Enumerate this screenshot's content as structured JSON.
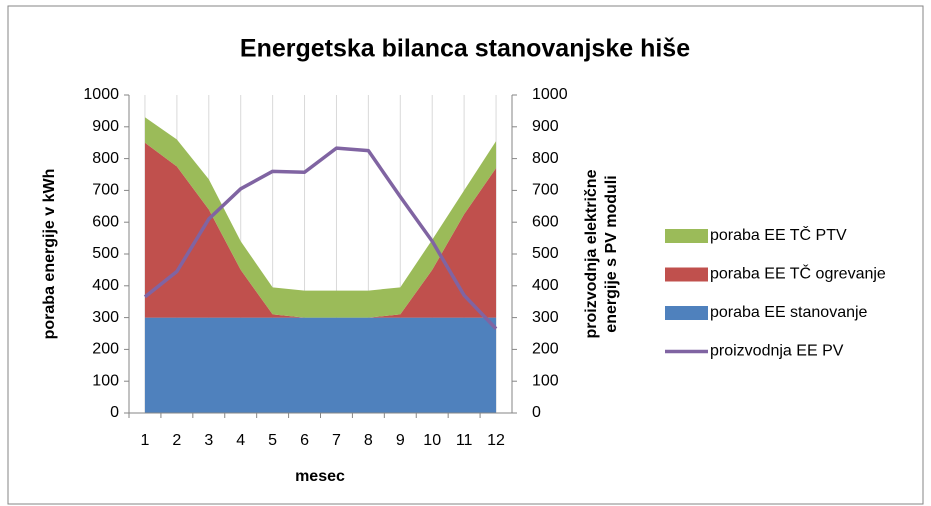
{
  "chart_data": {
    "type": "area",
    "title": "Energetska bilanca stanovanjske hiše",
    "xlabel": "mesec",
    "ylabel": "poraba energije v kWh",
    "y2label": [
      "proizvodnja električne",
      "energije s PV moduli"
    ],
    "categories": [
      "1",
      "2",
      "3",
      "4",
      "5",
      "6",
      "7",
      "8",
      "9",
      "10",
      "11",
      "12"
    ],
    "series": [
      {
        "name": "poraba EE stanovanje",
        "type": "area",
        "color": "#4f81bd",
        "values": [
          300,
          300,
          300,
          300,
          300,
          300,
          300,
          300,
          300,
          300,
          300,
          300
        ]
      },
      {
        "name": "poraba EE TČ ogrevanje",
        "type": "area",
        "color": "#c0504d",
        "values": [
          550,
          475,
          340,
          150,
          10,
          0,
          0,
          0,
          10,
          150,
          325,
          470
        ]
      },
      {
        "name": "poraba EE TČ PTV",
        "type": "area",
        "color": "#9bbb59",
        "values": [
          80,
          85,
          95,
          90,
          85,
          85,
          85,
          85,
          85,
          95,
          75,
          85
        ]
      },
      {
        "name": "proizvodnja EE PV",
        "type": "line",
        "axis": "y2",
        "color": "#8064a2",
        "values": [
          365,
          445,
          610,
          705,
          760,
          757,
          833,
          825,
          680,
          540,
          370,
          265
        ]
      }
    ],
    "legend_order": [
      2,
      1,
      0,
      3
    ],
    "ylim": [
      0,
      1000
    ],
    "yticks": [
      0,
      100,
      200,
      300,
      400,
      500,
      600,
      700,
      800,
      900,
      1000
    ],
    "y2lim": [
      0,
      1000
    ],
    "y2ticks": [
      0,
      100,
      200,
      300,
      400,
      500,
      600,
      700,
      800,
      900,
      1000
    ],
    "grid": true
  }
}
